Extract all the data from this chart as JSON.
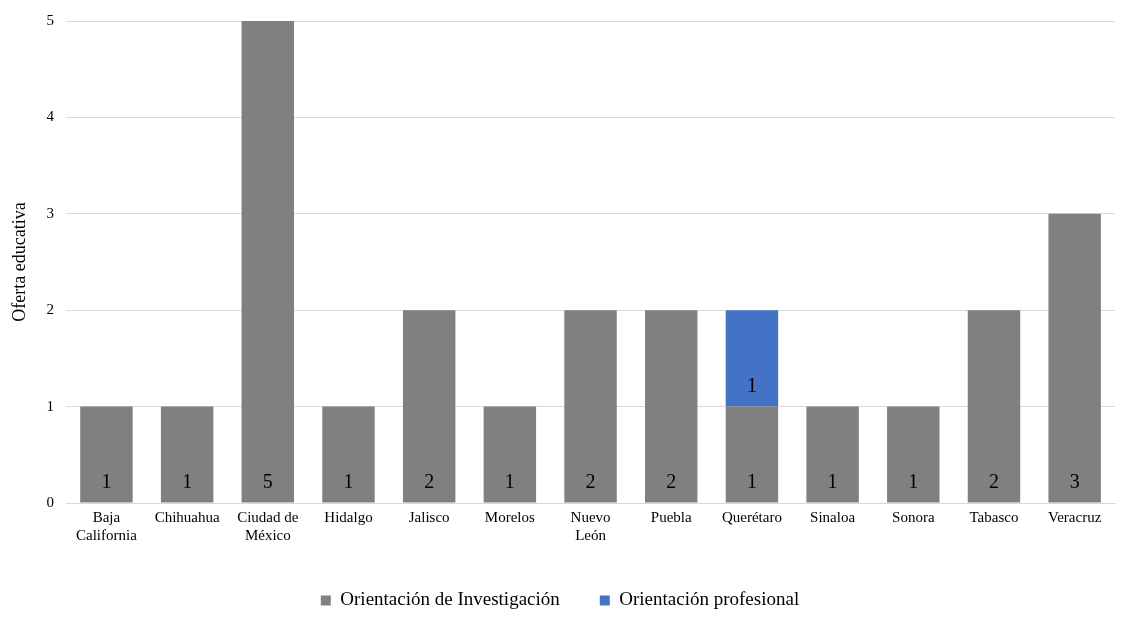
{
  "chart_data": {
    "type": "bar",
    "stacked": true,
    "ylabel": "Oferta educativa",
    "categories": [
      "Baja California",
      "Chihuahua",
      "Ciudad de México",
      "Hidalgo",
      "Jalisco",
      "Morelos",
      "Nuevo León",
      "Puebla",
      "Querétaro",
      "Sinaloa",
      "Sonora",
      "Tabasco",
      "Veracruz"
    ],
    "series": [
      {
        "name": "Orientación de Investigación",
        "color": "#808080",
        "values": [
          1,
          1,
          5,
          1,
          2,
          1,
          2,
          2,
          1,
          1,
          1,
          2,
          3
        ]
      },
      {
        "name": "Orientación profesional",
        "color": "#4472c4",
        "values": [
          null,
          null,
          null,
          null,
          null,
          null,
          null,
          null,
          1,
          null,
          null,
          null,
          null
        ]
      }
    ],
    "ylim": [
      0,
      5
    ],
    "yticks": [
      0,
      1,
      2,
      3,
      4,
      5
    ],
    "grid": "y",
    "legend": "bottom",
    "data_labels": true
  }
}
